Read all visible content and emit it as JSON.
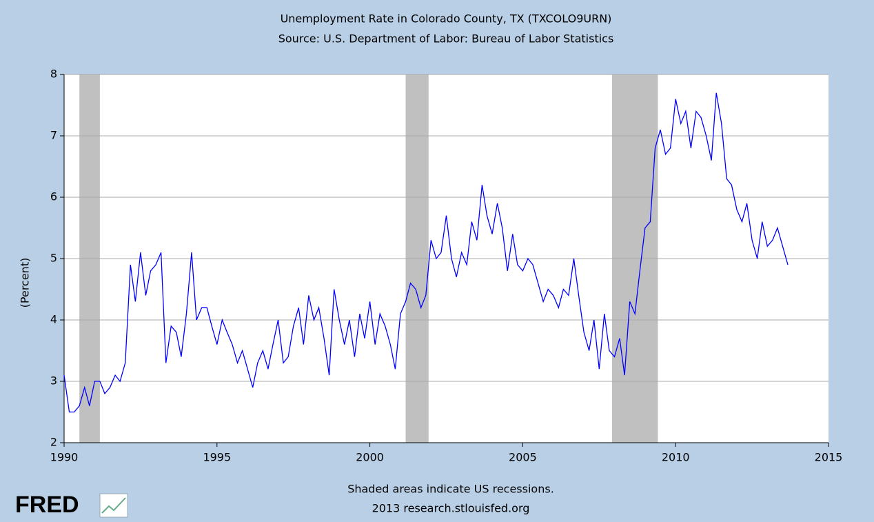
{
  "chart_data": {
    "type": "line",
    "title": "Unemployment Rate in Colorado County, TX (TXCOLO9URN)",
    "subtitle": "Source: U.S. Department of Labor: Bureau of Labor Statistics",
    "y_label": "(Percent)",
    "note": "Shaded areas indicate US recessions.",
    "credit": "2013 research.stlouisfed.org",
    "logo": "FRED",
    "xlim": [
      1990,
      2015
    ],
    "xticks": [
      1990,
      1995,
      2000,
      2005,
      2010,
      2015
    ],
    "ylim": [
      2,
      8
    ],
    "yticks": [
      2,
      3,
      4,
      5,
      6,
      7,
      8
    ],
    "grid": true,
    "recession_color": "#c0c0c0",
    "recessions": [
      [
        1990.5,
        1991.17
      ],
      [
        2001.17,
        2001.92
      ],
      [
        2007.92,
        2009.42
      ]
    ],
    "x": [
      1990,
      1990.17,
      1990.33,
      1990.5,
      1990.67,
      1990.83,
      1991,
      1991.17,
      1991.33,
      1991.5,
      1991.67,
      1991.83,
      1992,
      1992.17,
      1992.33,
      1992.5,
      1992.67,
      1992.83,
      1993,
      1993.17,
      1993.33,
      1993.5,
      1993.67,
      1993.83,
      1994,
      1994.17,
      1994.33,
      1994.5,
      1994.67,
      1994.83,
      1995,
      1995.17,
      1995.33,
      1995.5,
      1995.67,
      1995.83,
      1996,
      1996.17,
      1996.33,
      1996.5,
      1996.67,
      1996.83,
      1997,
      1997.17,
      1997.33,
      1997.5,
      1997.67,
      1997.83,
      1998,
      1998.17,
      1998.33,
      1998.5,
      1998.67,
      1998.83,
      1999,
      1999.17,
      1999.33,
      1999.5,
      1999.67,
      1999.83,
      2000,
      2000.17,
      2000.33,
      2000.5,
      2000.67,
      2000.83,
      2001,
      2001.17,
      2001.33,
      2001.5,
      2001.67,
      2001.83,
      2002,
      2002.17,
      2002.33,
      2002.5,
      2002.67,
      2002.83,
      2003,
      2003.17,
      2003.33,
      2003.5,
      2003.67,
      2003.83,
      2004,
      2004.17,
      2004.33,
      2004.5,
      2004.67,
      2004.83,
      2005,
      2005.17,
      2005.33,
      2005.5,
      2005.67,
      2005.83,
      2006,
      2006.17,
      2006.33,
      2006.5,
      2006.67,
      2006.83,
      2007,
      2007.17,
      2007.33,
      2007.5,
      2007.67,
      2007.83,
      2008,
      2008.17,
      2008.33,
      2008.5,
      2008.67,
      2008.83,
      2009,
      2009.17,
      2009.33,
      2009.5,
      2009.67,
      2009.83,
      2010,
      2010.17,
      2010.33,
      2010.5,
      2010.67,
      2010.83,
      2011,
      2011.17,
      2011.33,
      2011.5,
      2011.67,
      2011.83,
      2012,
      2012.17,
      2012.33,
      2012.5,
      2012.67,
      2012.83,
      2013,
      2013.17,
      2013.33,
      2013.5,
      2013.67
    ],
    "series": [
      {
        "color": "#0000ff",
        "values": [
          3.1,
          2.5,
          2.5,
          2.6,
          2.9,
          2.6,
          3.0,
          3.0,
          2.8,
          2.9,
          3.1,
          3.0,
          3.3,
          4.9,
          4.3,
          5.1,
          4.4,
          4.8,
          4.9,
          5.1,
          3.3,
          3.9,
          3.8,
          3.4,
          4.1,
          5.1,
          4.0,
          4.2,
          4.2,
          3.9,
          3.6,
          4.0,
          3.8,
          3.6,
          3.3,
          3.5,
          3.2,
          2.9,
          3.3,
          3.5,
          3.2,
          3.6,
          4.0,
          3.3,
          3.4,
          3.9,
          4.2,
          3.6,
          4.4,
          4.0,
          4.2,
          3.7,
          3.1,
          4.5,
          4.0,
          3.6,
          4.0,
          3.4,
          4.1,
          3.7,
          4.3,
          3.6,
          4.1,
          3.9,
          3.6,
          3.2,
          4.1,
          4.3,
          4.6,
          4.5,
          4.2,
          4.4,
          5.3,
          5.0,
          5.1,
          5.7,
          5.0,
          4.7,
          5.1,
          4.9,
          5.6,
          5.3,
          6.2,
          5.7,
          5.4,
          5.9,
          5.5,
          4.8,
          5.4,
          4.9,
          4.8,
          5.0,
          4.9,
          4.6,
          4.3,
          4.5,
          4.4,
          4.2,
          4.5,
          4.4,
          5.0,
          4.4,
          3.8,
          3.5,
          4.0,
          3.2,
          4.1,
          3.5,
          3.4,
          3.7,
          3.1,
          4.3,
          4.1,
          4.8,
          5.5,
          5.6,
          6.8,
          7.1,
          6.7,
          6.8,
          7.6,
          7.2,
          7.4,
          6.8,
          7.4,
          7.3,
          7.0,
          6.6,
          7.7,
          7.2,
          6.3,
          6.2,
          5.8,
          5.6,
          5.9,
          5.3,
          5.0,
          5.6,
          5.2,
          5.3,
          5.5,
          5.2,
          4.9
        ]
      }
    ]
  }
}
